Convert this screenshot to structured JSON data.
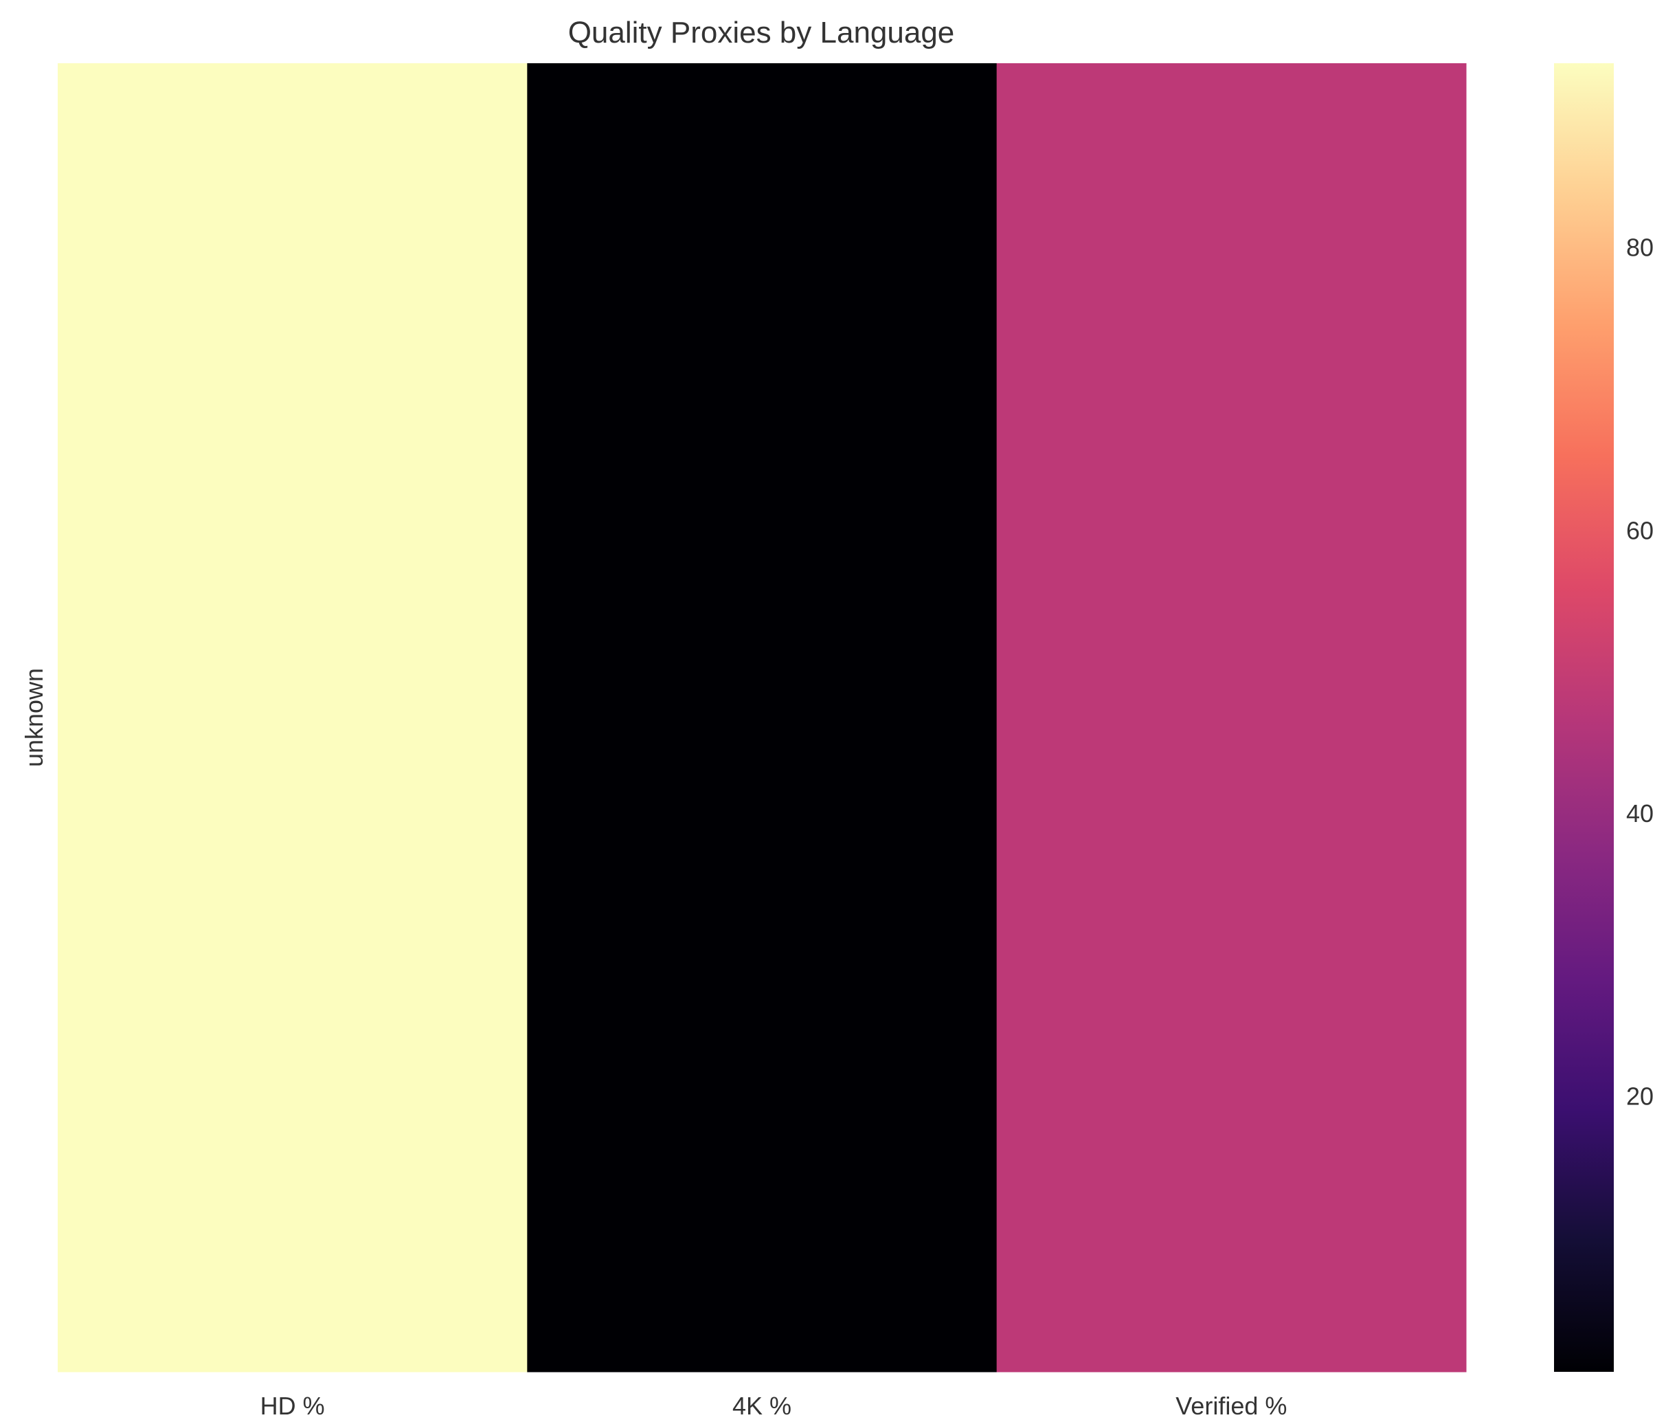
{
  "chart_data": {
    "type": "heatmap",
    "title": "Quality Proxies by Language",
    "xlabel": "",
    "ylabel": "",
    "x_categories": [
      "HD %",
      "4K %",
      "Verified %"
    ],
    "y_categories": [
      "unknown"
    ],
    "values": [
      [
        93.0,
        0.5,
        49.0
      ]
    ],
    "colormap": "magma",
    "colorbar": {
      "range": [
        0.5,
        93.0
      ],
      "ticks": [
        20,
        40,
        60,
        80
      ],
      "tick_labels": [
        "20",
        "40",
        "60",
        "80"
      ]
    },
    "grid": false,
    "cell_colors": [
      "#fcfdbf",
      "#000004",
      "#bd3977"
    ]
  }
}
